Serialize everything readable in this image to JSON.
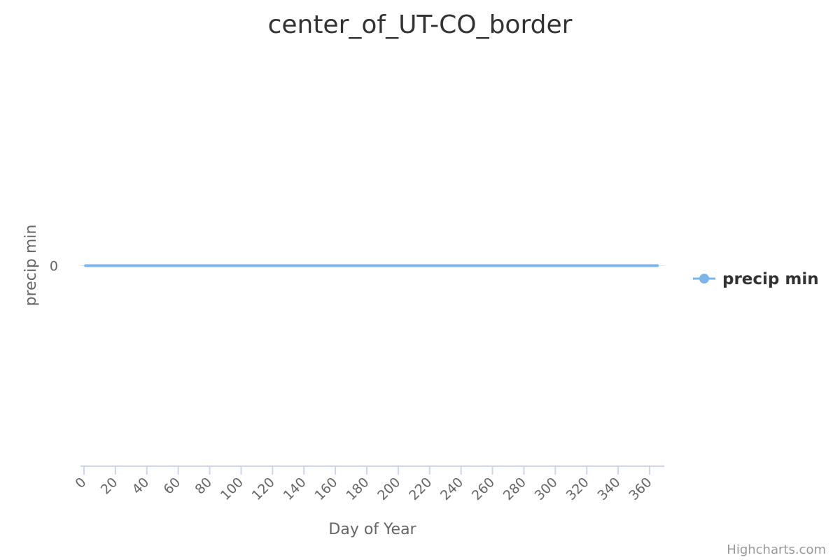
{
  "chart_data": {
    "type": "line",
    "title": "center_of_UT-CO_border",
    "xlabel": "Day of Year",
    "ylabel": "precip min",
    "x_ticks": [
      "0",
      "20",
      "40",
      "60",
      "80",
      "100",
      "120",
      "140",
      "160",
      "180",
      "200",
      "220",
      "240",
      "260",
      "280",
      "300",
      "320",
      "340",
      "360"
    ],
    "y_ticks": [
      "0"
    ],
    "xlim": [
      0,
      365
    ],
    "ylim": [
      -1,
      1
    ],
    "grid": false,
    "legend_position": "right",
    "series": [
      {
        "name": "precip min",
        "color": "#7cb5ec",
        "x": [
          1,
          365
        ],
        "y": [
          0,
          0
        ]
      }
    ]
  },
  "credits": "Highcharts.com"
}
